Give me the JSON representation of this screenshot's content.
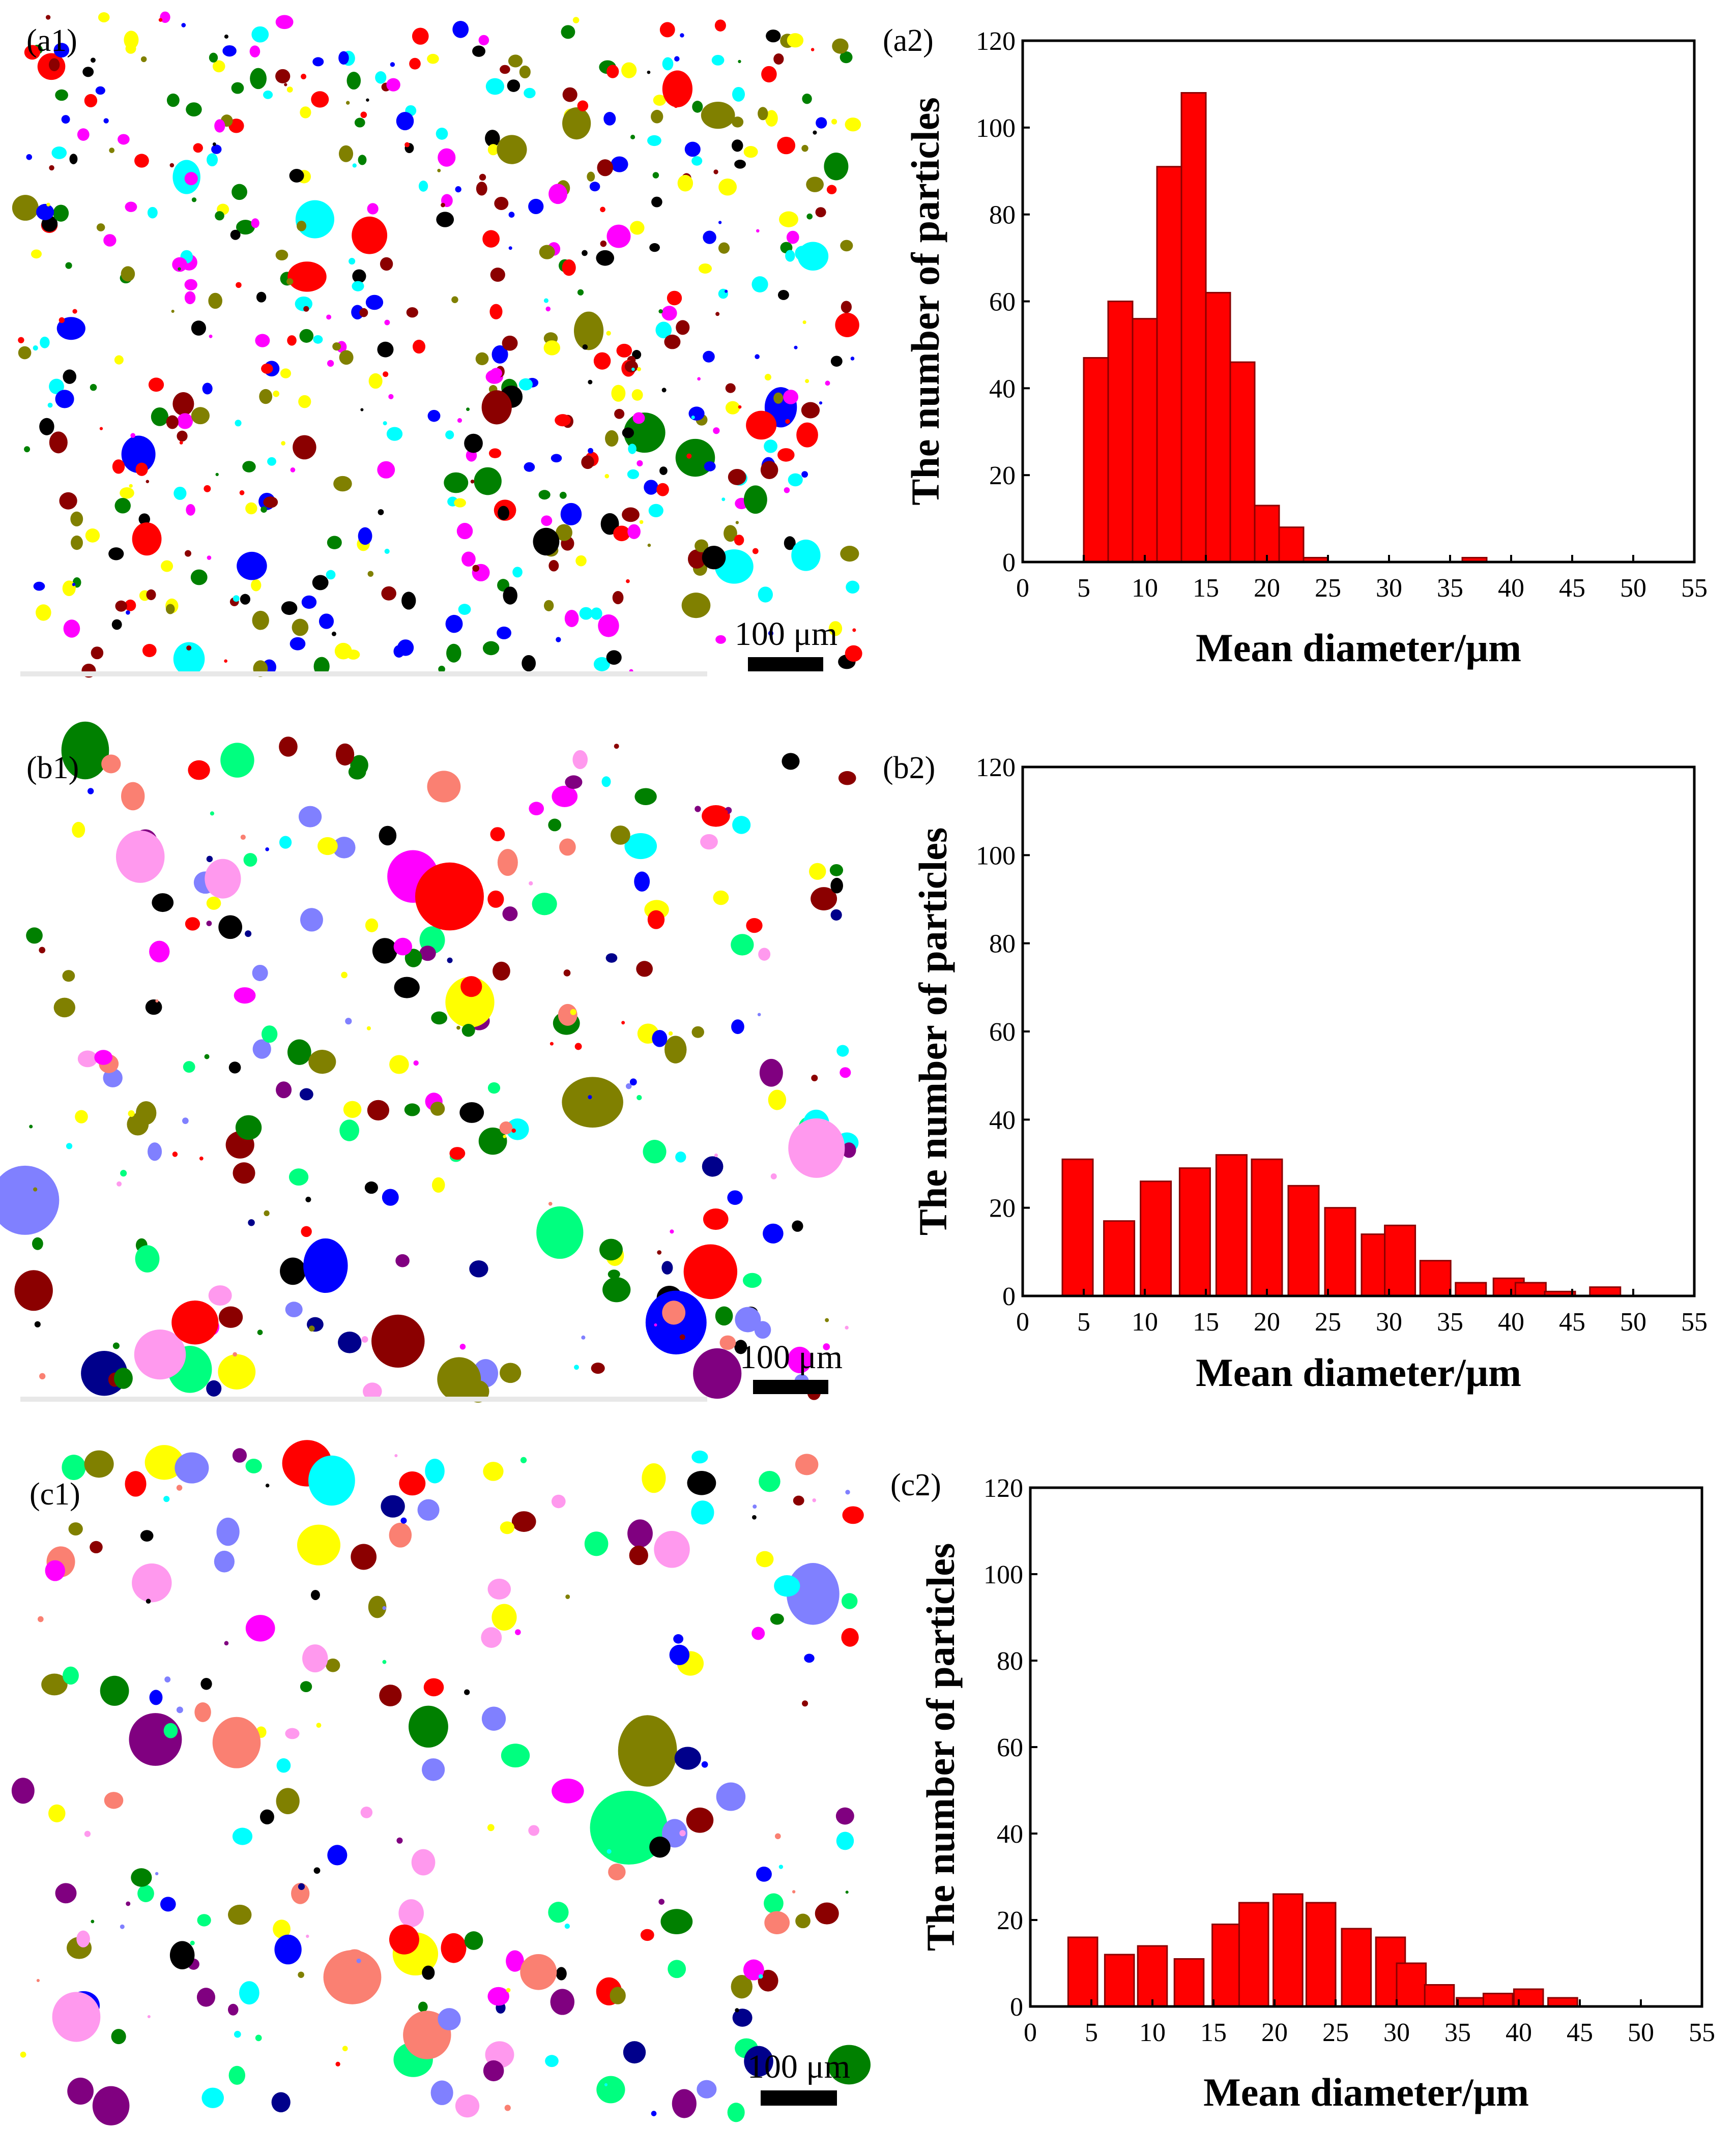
{
  "colors": {
    "bar_fill": "#ff0000",
    "bar_stroke": "#8b0000",
    "axis": "#000000",
    "background": "#ffffff",
    "particle_palette": [
      "#ff00ff",
      "#00ffff",
      "#0000ff",
      "#008000",
      "#8b0000",
      "#808000",
      "#ffff00",
      "#ff0000",
      "#00008b",
      "#800080",
      "#fa8072",
      "#00ff7f",
      "#ff99ee",
      "#8080ff",
      "#000000"
    ]
  },
  "micrographs": [
    {
      "label": "(a1)",
      "scale_bar": "100 μm"
    },
    {
      "label": "(b1)",
      "scale_bar": "100 μm"
    },
    {
      "label": "(c1)",
      "scale_bar": "100 μm"
    }
  ],
  "chart_data": [
    {
      "type": "bar",
      "label": "(a2)",
      "xlabel": "Mean diameter/μm",
      "ylabel": "The number of particles",
      "xlim": [
        0,
        55
      ],
      "ylim": [
        0,
        120
      ],
      "xticks": [
        0,
        5,
        10,
        15,
        20,
        25,
        30,
        35,
        40,
        45,
        50,
        55
      ],
      "yticks": [
        0,
        20,
        40,
        60,
        80,
        100,
        120
      ],
      "bin_width": 2,
      "bins": [
        {
          "x": 6,
          "value": 47
        },
        {
          "x": 8,
          "value": 60
        },
        {
          "x": 10,
          "value": 56
        },
        {
          "x": 12,
          "value": 91
        },
        {
          "x": 14,
          "value": 108
        },
        {
          "x": 16,
          "value": 62
        },
        {
          "x": 18,
          "value": 46
        },
        {
          "x": 20,
          "value": 13
        },
        {
          "x": 22,
          "value": 8
        },
        {
          "x": 24,
          "value": 1
        },
        {
          "x": 37,
          "value": 1
        }
      ]
    },
    {
      "type": "bar",
      "label": "(b2)",
      "xlabel": "Mean diameter/μm",
      "ylabel": "The number of particles",
      "xlim": [
        0,
        55
      ],
      "ylim": [
        0,
        120
      ],
      "xticks": [
        0,
        5,
        10,
        15,
        20,
        25,
        30,
        35,
        40,
        45,
        50,
        55
      ],
      "yticks": [
        0,
        20,
        40,
        60,
        80,
        100,
        120
      ],
      "bin_width": 2.5,
      "bins": [
        {
          "x": 4.5,
          "value": 31
        },
        {
          "x": 7.9,
          "value": 17
        },
        {
          "x": 10.9,
          "value": 26
        },
        {
          "x": 14.1,
          "value": 29
        },
        {
          "x": 17.1,
          "value": 32
        },
        {
          "x": 20.0,
          "value": 31
        },
        {
          "x": 23.0,
          "value": 25
        },
        {
          "x": 26.0,
          "value": 20
        },
        {
          "x": 29.0,
          "value": 14
        },
        {
          "x": 30.9,
          "value": 16
        },
        {
          "x": 33.8,
          "value": 8
        },
        {
          "x": 36.7,
          "value": 3
        },
        {
          "x": 39.8,
          "value": 4
        },
        {
          "x": 41.6,
          "value": 3
        },
        {
          "x": 44.0,
          "value": 1
        },
        {
          "x": 47.7,
          "value": 2
        }
      ]
    },
    {
      "type": "bar",
      "label": "(c2)",
      "xlabel": "Mean diameter/μm",
      "ylabel": "The number of particles",
      "xlim": [
        0,
        55
      ],
      "ylim": [
        0,
        120
      ],
      "xticks": [
        0,
        5,
        10,
        15,
        20,
        25,
        30,
        35,
        40,
        45,
        50,
        55
      ],
      "yticks": [
        0,
        20,
        40,
        60,
        80,
        100,
        120
      ],
      "bin_width": 2.4,
      "bins": [
        {
          "x": 4.3,
          "value": 16
        },
        {
          "x": 7.3,
          "value": 12
        },
        {
          "x": 10.0,
          "value": 14
        },
        {
          "x": 13.0,
          "value": 11
        },
        {
          "x": 16.1,
          "value": 19
        },
        {
          "x": 18.3,
          "value": 24
        },
        {
          "x": 21.1,
          "value": 26
        },
        {
          "x": 23.8,
          "value": 24
        },
        {
          "x": 26.7,
          "value": 18
        },
        {
          "x": 29.5,
          "value": 16
        },
        {
          "x": 31.2,
          "value": 10
        },
        {
          "x": 33.5,
          "value": 5
        },
        {
          "x": 36.1,
          "value": 2
        },
        {
          "x": 38.3,
          "value": 3
        },
        {
          "x": 40.8,
          "value": 4
        },
        {
          "x": 43.6,
          "value": 2
        }
      ]
    }
  ]
}
